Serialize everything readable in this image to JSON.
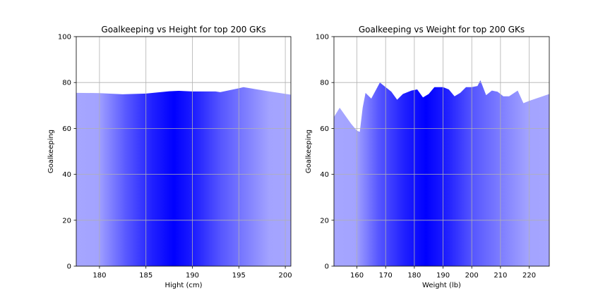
{
  "chart_data": [
    {
      "type": "area",
      "title": "Goalkeeping vs Height for top 200 GKs",
      "xlabel": "Hight (cm)",
      "ylabel": "Goalkeeping",
      "xlim": [
        177.5,
        200.6
      ],
      "ylim": [
        0,
        100
      ],
      "xticks": [
        180,
        185,
        190,
        195,
        200
      ],
      "yticks": [
        0,
        20,
        40,
        60,
        80,
        100
      ],
      "grid": true,
      "fill_color": "#0000ff",
      "fill_peak": 188.0,
      "x": [
        177.5,
        180,
        182.5,
        185,
        187.5,
        188.5,
        190,
        192.5,
        193,
        195,
        195.5,
        198,
        200.6
      ],
      "y": [
        75.5,
        75.4,
        74.9,
        75.2,
        76.2,
        76.4,
        76.1,
        76.1,
        75.8,
        77.5,
        78.0,
        76.3,
        74.7
      ]
    },
    {
      "type": "area",
      "title": "Goalkeeping vs Weight for top 200 GKs",
      "xlabel": "Weight (lb)",
      "ylabel": "Goalkeeping",
      "xlim": [
        152,
        227
      ],
      "ylim": [
        0,
        100
      ],
      "xticks": [
        160,
        170,
        180,
        190,
        200,
        210,
        220
      ],
      "yticks": [
        0,
        20,
        40,
        60,
        80,
        100
      ],
      "grid": true,
      "fill_color": "#0000ff",
      "fill_peak": 184.0,
      "x": [
        152,
        154,
        158,
        160,
        161,
        162,
        163,
        165,
        168,
        170,
        172,
        174,
        176,
        179,
        181,
        183,
        185,
        187,
        190,
        192,
        194,
        196,
        198,
        200,
        202,
        203,
        205,
        207,
        209,
        211,
        213,
        216,
        218,
        220,
        227
      ],
      "y": [
        65.0,
        69.0,
        62.0,
        59.0,
        58.5,
        69.0,
        75.5,
        73.0,
        80.0,
        78.0,
        76.0,
        72.5,
        75.0,
        76.5,
        77.0,
        73.5,
        75.0,
        78.0,
        78.0,
        77.0,
        74.0,
        75.5,
        78.0,
        78.0,
        78.5,
        81.0,
        74.5,
        76.5,
        76.0,
        74.0,
        74.0,
        76.5,
        71.0,
        72.0,
        75.0
      ]
    }
  ]
}
